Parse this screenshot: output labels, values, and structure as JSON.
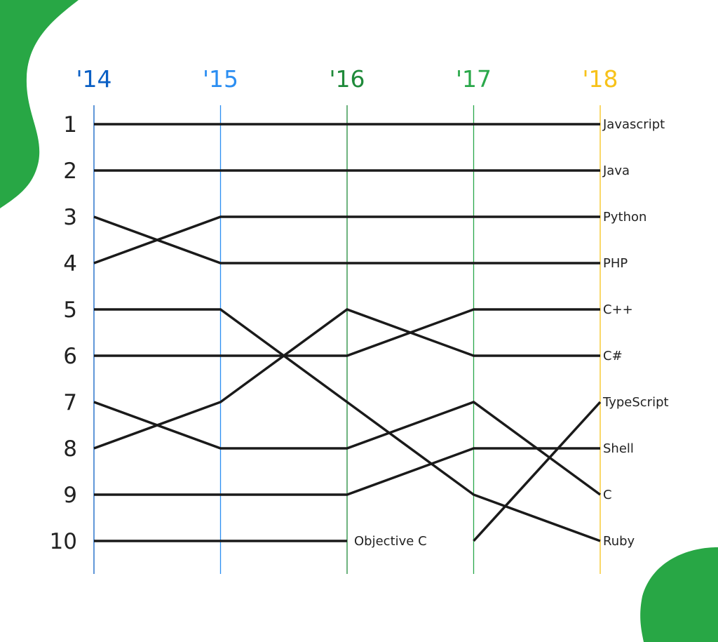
{
  "chart_data": {
    "type": "bump",
    "title": "",
    "x": [
      "'14",
      "'15",
      "'16",
      "'17",
      "'18"
    ],
    "x_colors": [
      "#0a5fc4",
      "#2b8ef2",
      "#1f8a3a",
      "#2aa84a",
      "#f7c21a"
    ],
    "ranks": [
      "1",
      "2",
      "3",
      "4",
      "5",
      "6",
      "7",
      "8",
      "9",
      "10"
    ],
    "ylim": [
      1,
      10
    ],
    "grid": false,
    "line_color": "#1a1a1a",
    "series": [
      {
        "name": "Javascript",
        "values": [
          1,
          1,
          1,
          1,
          1
        ]
      },
      {
        "name": "Java",
        "values": [
          2,
          2,
          2,
          2,
          2
        ]
      },
      {
        "name": "Python",
        "values": [
          4,
          3,
          3,
          3,
          3
        ]
      },
      {
        "name": "PHP",
        "values": [
          3,
          4,
          4,
          4,
          4
        ]
      },
      {
        "name": "C++",
        "values": [
          6,
          6,
          6,
          5,
          5
        ]
      },
      {
        "name": "C#",
        "values": [
          8,
          7,
          5,
          6,
          6
        ]
      },
      {
        "name": "TypeScript",
        "values": [
          null,
          null,
          null,
          10,
          7
        ]
      },
      {
        "name": "Shell",
        "values": [
          9,
          9,
          9,
          8,
          8
        ]
      },
      {
        "name": "C",
        "values": [
          7,
          8,
          8,
          7,
          9
        ]
      },
      {
        "name": "Ruby",
        "values": [
          5,
          5,
          7,
          9,
          10
        ]
      },
      {
        "name": "Objective C",
        "values": [
          10,
          10,
          10,
          null,
          null
        ]
      }
    ]
  },
  "decoration_color": "#28a745"
}
